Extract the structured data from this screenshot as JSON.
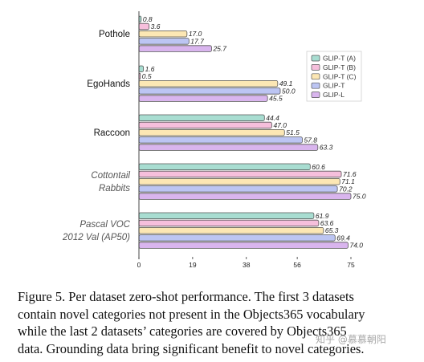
{
  "chart_data": {
    "type": "bar",
    "orientation": "horizontal",
    "categories": [
      {
        "lines": [
          "Pothole"
        ],
        "italic": false
      },
      {
        "lines": [
          "EgoHands"
        ],
        "italic": false
      },
      {
        "lines": [
          "Raccoon"
        ],
        "italic": false
      },
      {
        "lines": [
          "Cottontail",
          "Rabbits"
        ],
        "italic": true
      },
      {
        "lines": [
          "Pascal VOC",
          "2012 Val (AP50)"
        ],
        "italic": true
      }
    ],
    "series": [
      {
        "name": "GLIP-T (A)",
        "color": "#a8ddd1",
        "values": [
          0.8,
          1.6,
          44.4,
          60.6,
          61.9
        ],
        "labels": [
          "0.8",
          "1.6",
          "44.4",
          "60.6",
          "61.9"
        ]
      },
      {
        "name": "GLIP-T (B)",
        "color": "#f6bfdc",
        "values": [
          3.6,
          0.5,
          47.0,
          71.6,
          63.6
        ],
        "labels": [
          "3.6",
          "0.5",
          "47.0",
          "71.6",
          "63.6"
        ]
      },
      {
        "name": "GLIP-T (C)",
        "color": "#fce7b4",
        "values": [
          17.0,
          49.1,
          51.5,
          71.1,
          65.3
        ],
        "labels": [
          "17.0",
          "49.1",
          "51.5",
          "71.1",
          "65.3"
        ]
      },
      {
        "name": "GLIP-T",
        "color": "#bcc5f3",
        "values": [
          17.7,
          50.0,
          57.8,
          70.2,
          69.4
        ],
        "labels": [
          "17.7",
          "50.0",
          "57.8",
          "70.2",
          "69.4"
        ]
      },
      {
        "name": "GLIP-L",
        "color": "#d9b5ee",
        "values": [
          25.7,
          45.5,
          63.3,
          75.0,
          74.0
        ],
        "labels": [
          "25.7",
          "45.5",
          "63.3",
          "75.0",
          "74.0"
        ]
      }
    ],
    "xlim": [
      0,
      75
    ],
    "xticks": [
      0,
      19,
      38,
      56,
      75
    ],
    "legend_position": "right",
    "grid": false,
    "stroke_color": "#555555"
  },
  "caption": {
    "lines": [
      "Figure 5. Per dataset zero-shot performance. The first 3 datasets",
      "contain novel categories not present in the Objects365 vocabulary",
      "while the last 2 datasets’ categories are covered by Objects365",
      "data. Grounding data bring significant benefit to novel categories."
    ]
  },
  "watermark": "知乎 @慕慕朝阳"
}
